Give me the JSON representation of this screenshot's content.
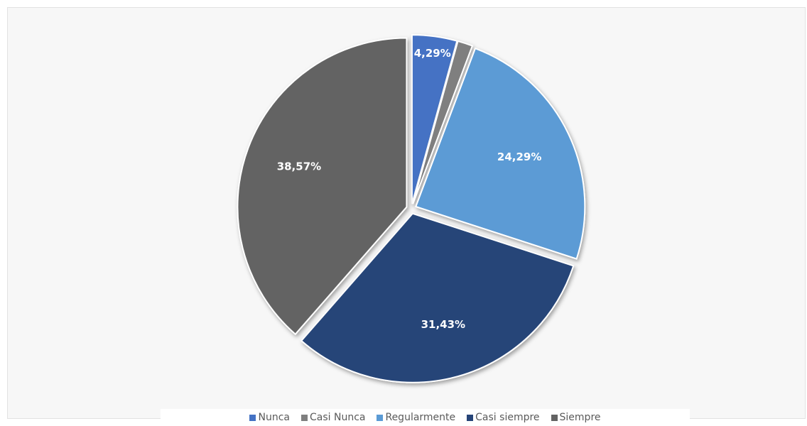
{
  "chart_data": {
    "type": "pie",
    "title": "",
    "slices": [
      {
        "name": "Nunca",
        "value": 4.29,
        "label": "4,29%",
        "color": "#4472c4"
      },
      {
        "name": "Casi Nunca",
        "value": 1.43,
        "label": "",
        "color": "#7f7f7f"
      },
      {
        "name": "Regularmente",
        "value": 24.29,
        "label": "24,29%",
        "color": "#5b9bd5"
      },
      {
        "name": "Casi siempre",
        "value": 31.43,
        "label": "31,43%",
        "color": "#264478"
      },
      {
        "name": "Siempre",
        "value": 38.57,
        "label": "38,57%",
        "color": "#636363"
      }
    ],
    "legend": {
      "position": "bottom"
    }
  }
}
